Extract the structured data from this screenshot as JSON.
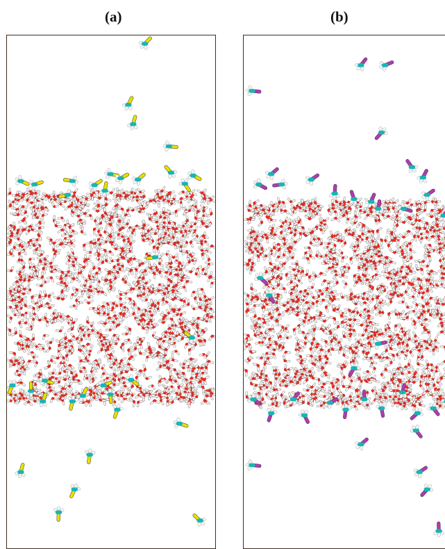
{
  "figure": {
    "panels": [
      {
        "label": "(a)",
        "solute_color": "#e8e000"
      },
      {
        "label": "(b)",
        "solute_color": "#b23ab4"
      }
    ],
    "colors": {
      "water_oxygen": "#e8261b",
      "water_hydrogen": "#f2f2f2",
      "carbon": "#19b5b5",
      "hydrogen": "#f4f4f4",
      "frame": "#3a2c1c"
    }
  }
}
